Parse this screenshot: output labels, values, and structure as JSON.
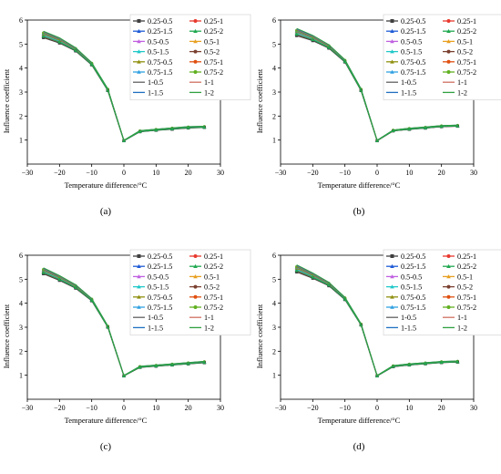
{
  "chart_data": [
    {
      "panel_label": "(a)",
      "type": "line",
      "xlabel": "Temperature difference/°C",
      "ylabel": "Influence coefficient",
      "xlim": [
        -30,
        30
      ],
      "ylim": [
        0,
        6
      ],
      "x_ticks": [
        "−30",
        "−20",
        "−10",
        "0",
        "10",
        "20",
        "30"
      ],
      "y_ticks": [
        "1",
        "2",
        "3",
        "4",
        "5",
        "6"
      ],
      "x": [
        -25,
        -20,
        -15,
        -10,
        -5,
        0,
        5,
        10,
        15,
        20,
        25
      ],
      "base_values": [
        5.4,
        5.15,
        4.78,
        4.18,
        3.1,
        0.98,
        1.37,
        1.43,
        1.48,
        1.53,
        1.55
      ],
      "spread": [
        0.27,
        0.22,
        0.14,
        0.1,
        0.08,
        0.02,
        0.05,
        0.05,
        0.06,
        0.06,
        0.05
      ],
      "legend": "right",
      "series": [
        {
          "name": "0.25-0.5",
          "color": "#404040",
          "marker": "square"
        },
        {
          "name": "0.25-1",
          "color": "#e8392e",
          "marker": "circle"
        },
        {
          "name": "0.25-1.5",
          "color": "#1f5bd6",
          "marker": "triangle"
        },
        {
          "name": "0.25-2",
          "color": "#20a850",
          "marker": "triangle-down"
        },
        {
          "name": "0.5-0.5",
          "color": "#c060e0",
          "marker": "diamond"
        },
        {
          "name": "0.5-1",
          "color": "#e8a020",
          "marker": "triangle-left"
        },
        {
          "name": "0.5-1.5",
          "color": "#20c8c8",
          "marker": "triangle-right"
        },
        {
          "name": "0.5-2",
          "color": "#7a4030",
          "marker": "hexagon"
        },
        {
          "name": "0.75-0.5",
          "color": "#909010",
          "marker": "star"
        },
        {
          "name": "0.75-1",
          "color": "#e05010",
          "marker": "pentagon"
        },
        {
          "name": "0.75-1.5",
          "color": "#30a0e0",
          "marker": "diamond"
        },
        {
          "name": "0.75-2",
          "color": "#60b020",
          "marker": "circle"
        },
        {
          "name": "1-0.5",
          "color": "#606060",
          "marker": "none"
        },
        {
          "name": "1-1",
          "color": "#d07060",
          "marker": "none"
        },
        {
          "name": "1-1.5",
          "color": "#2070c0",
          "marker": "none"
        },
        {
          "name": "1-2",
          "color": "#30a040",
          "marker": "none"
        }
      ]
    },
    {
      "panel_label": "(b)",
      "type": "line",
      "xlabel": "Temperature difference/°C",
      "ylabel": "Influence coefficient",
      "xlim": [
        -30,
        30
      ],
      "ylim": [
        0,
        6
      ],
      "x_ticks": [
        "−30",
        "−20",
        "−10",
        "0",
        "10",
        "20",
        "30"
      ],
      "y_ticks": [
        "1",
        "2",
        "3",
        "4",
        "5",
        "6"
      ],
      "x": [
        -25,
        -20,
        -15,
        -10,
        -5,
        0,
        5,
        10,
        15,
        20,
        25
      ],
      "base_values": [
        5.5,
        5.25,
        4.9,
        4.3,
        3.1,
        0.98,
        1.4,
        1.47,
        1.52,
        1.58,
        1.6
      ],
      "spread": [
        0.3,
        0.22,
        0.15,
        0.1,
        0.08,
        0.02,
        0.04,
        0.05,
        0.05,
        0.05,
        0.05
      ],
      "legend": "right",
      "series": [
        {
          "name": "0.25-0.5",
          "color": "#404040",
          "marker": "square"
        },
        {
          "name": "0.25-1",
          "color": "#e8392e",
          "marker": "circle"
        },
        {
          "name": "0.25-1.5",
          "color": "#1f5bd6",
          "marker": "triangle"
        },
        {
          "name": "0.25-2",
          "color": "#20a850",
          "marker": "triangle-down"
        },
        {
          "name": "0.5-0.5",
          "color": "#c060e0",
          "marker": "diamond"
        },
        {
          "name": "0.5-1",
          "color": "#e8a020",
          "marker": "triangle-left"
        },
        {
          "name": "0.5-1.5",
          "color": "#20c8c8",
          "marker": "triangle-right"
        },
        {
          "name": "0.5-2",
          "color": "#7a4030",
          "marker": "hexagon"
        },
        {
          "name": "0.75-0.5",
          "color": "#909010",
          "marker": "star"
        },
        {
          "name": "0.75-1",
          "color": "#e05010",
          "marker": "pentagon"
        },
        {
          "name": "0.75-1.5",
          "color": "#30a0e0",
          "marker": "diamond"
        },
        {
          "name": "0.75-2",
          "color": "#60b020",
          "marker": "circle"
        },
        {
          "name": "1-0.5",
          "color": "#606060",
          "marker": "none"
        },
        {
          "name": "1-1",
          "color": "#d07060",
          "marker": "none"
        },
        {
          "name": "1-1.5",
          "color": "#2070c0",
          "marker": "none"
        },
        {
          "name": "1-2",
          "color": "#30a040",
          "marker": "none"
        }
      ]
    },
    {
      "panel_label": "(c)",
      "type": "line",
      "xlabel": "Temperature difference/°C",
      "ylabel": "Influence coefficient",
      "xlim": [
        -30,
        30
      ],
      "ylim": [
        0,
        6
      ],
      "x_ticks": [
        "−30",
        "−20",
        "−10",
        "0",
        "10",
        "20",
        "30"
      ],
      "y_ticks": [
        "1",
        "2",
        "3",
        "4",
        "5",
        "6"
      ],
      "x": [
        -25,
        -20,
        -15,
        -10,
        -5,
        0,
        5,
        10,
        15,
        20,
        25
      ],
      "base_values": [
        5.35,
        5.05,
        4.7,
        4.15,
        3.03,
        0.98,
        1.35,
        1.4,
        1.45,
        1.5,
        1.55
      ],
      "spread": [
        0.25,
        0.2,
        0.15,
        0.1,
        0.06,
        0.02,
        0.05,
        0.05,
        0.05,
        0.06,
        0.06
      ],
      "legend": "right",
      "series": [
        {
          "name": "0.25-0.5",
          "color": "#404040",
          "marker": "square"
        },
        {
          "name": "0.25-1",
          "color": "#e8392e",
          "marker": "circle"
        },
        {
          "name": "0.25-1.5",
          "color": "#1f5bd6",
          "marker": "triangle"
        },
        {
          "name": "0.25-2",
          "color": "#20a850",
          "marker": "triangle-down"
        },
        {
          "name": "0.5-0.5",
          "color": "#c060e0",
          "marker": "diamond"
        },
        {
          "name": "0.5-1",
          "color": "#e8a020",
          "marker": "triangle-left"
        },
        {
          "name": "0.5-1.5",
          "color": "#20c8c8",
          "marker": "triangle-right"
        },
        {
          "name": "0.5-2",
          "color": "#7a4030",
          "marker": "hexagon"
        },
        {
          "name": "0.75-0.5",
          "color": "#909010",
          "marker": "star"
        },
        {
          "name": "0.75-1",
          "color": "#e05010",
          "marker": "pentagon"
        },
        {
          "name": "0.75-1.5",
          "color": "#30a0e0",
          "marker": "diamond"
        },
        {
          "name": "0.75-2",
          "color": "#60b020",
          "marker": "circle"
        },
        {
          "name": "1-0.5",
          "color": "#606060",
          "marker": "none"
        },
        {
          "name": "1-1",
          "color": "#d07060",
          "marker": "none"
        },
        {
          "name": "1-1.5",
          "color": "#2070c0",
          "marker": "none"
        },
        {
          "name": "1-2",
          "color": "#30a040",
          "marker": "none"
        }
      ]
    },
    {
      "panel_label": "(d)",
      "type": "line",
      "xlabel": "Temperature difference/°C",
      "ylabel": "Influence coefficient",
      "xlim": [
        -30,
        30
      ],
      "ylim": [
        0,
        6
      ],
      "x_ticks": [
        "−30",
        "−20",
        "−10",
        "0",
        "10",
        "20",
        "30"
      ],
      "y_ticks": [
        "1",
        "2",
        "3",
        "4",
        "5",
        "6"
      ],
      "x": [
        -25,
        -20,
        -15,
        -10,
        -5,
        0,
        5,
        10,
        15,
        20,
        25
      ],
      "base_values": [
        5.45,
        5.15,
        4.8,
        4.2,
        3.12,
        0.98,
        1.38,
        1.45,
        1.5,
        1.55,
        1.57
      ],
      "spread": [
        0.3,
        0.22,
        0.15,
        0.1,
        0.06,
        0.02,
        0.05,
        0.05,
        0.05,
        0.05,
        0.05
      ],
      "legend": "right",
      "series": [
        {
          "name": "0.25-0.5",
          "color": "#404040",
          "marker": "square"
        },
        {
          "name": "0.25-1",
          "color": "#e8392e",
          "marker": "circle"
        },
        {
          "name": "0.25-1.5",
          "color": "#1f5bd6",
          "marker": "triangle"
        },
        {
          "name": "0.25-2",
          "color": "#20a850",
          "marker": "triangle-down"
        },
        {
          "name": "0.5-0.5",
          "color": "#c060e0",
          "marker": "diamond"
        },
        {
          "name": "0.5-1",
          "color": "#e8a020",
          "marker": "triangle-left"
        },
        {
          "name": "0.5-1.5",
          "color": "#20c8c8",
          "marker": "triangle-right"
        },
        {
          "name": "0.5-2",
          "color": "#7a4030",
          "marker": "hexagon"
        },
        {
          "name": "0.75-0.5",
          "color": "#909010",
          "marker": "star"
        },
        {
          "name": "0.75-1",
          "color": "#e05010",
          "marker": "pentagon"
        },
        {
          "name": "0.75-1.5",
          "color": "#30a0e0",
          "marker": "diamond"
        },
        {
          "name": "0.75-2",
          "color": "#60b020",
          "marker": "circle"
        },
        {
          "name": "1-0.5",
          "color": "#606060",
          "marker": "none"
        },
        {
          "name": "1-1",
          "color": "#d07060",
          "marker": "none"
        },
        {
          "name": "1-1.5",
          "color": "#2070c0",
          "marker": "none"
        },
        {
          "name": "1-2",
          "color": "#30a040",
          "marker": "none"
        }
      ]
    }
  ]
}
